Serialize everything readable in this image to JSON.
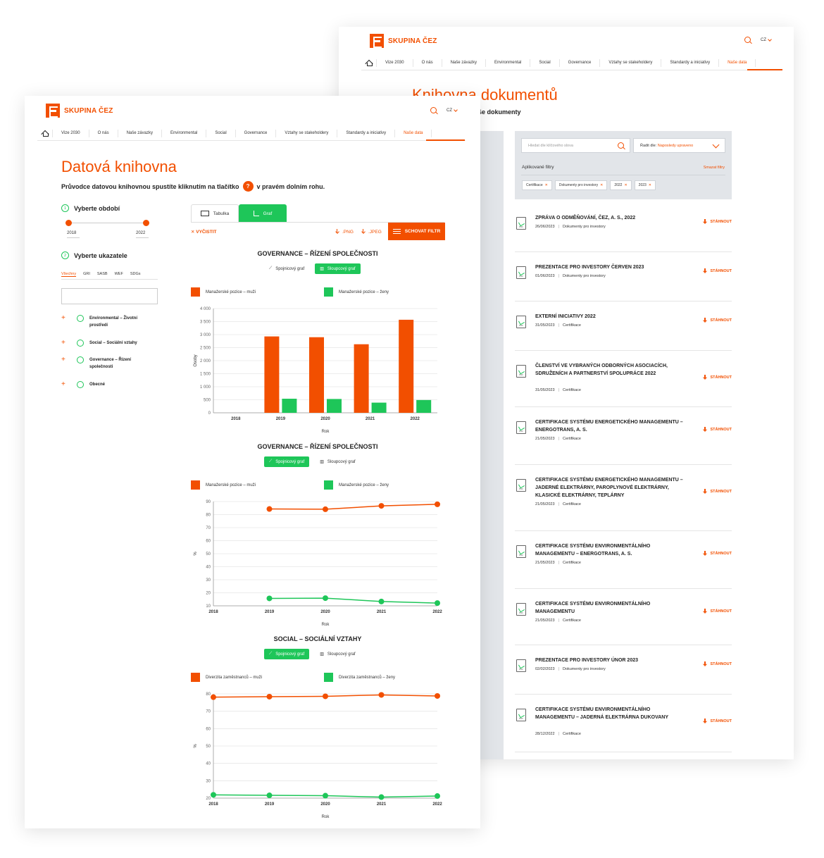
{
  "brand": {
    "name": "SKUPINA ČEZ",
    "accent": "#f24f00",
    "green": "#1ec659"
  },
  "header": {
    "lang": "CZ"
  },
  "nav": [
    "Vize 2030",
    "O nás",
    "Naše závazky",
    "Environmental",
    "Social",
    "Governance",
    "Vztahy se stakeholdery",
    "Standardy a iniciativy",
    "Naše data"
  ],
  "back": {
    "title": "Knihovna dokumentů",
    "subtitle": "še dokumenty",
    "search_placeholder": "Hledat dle klíčového slova",
    "sort_label": "Řadit dle:",
    "sort_value": "Naposledy upraveno",
    "applied_label": "Aplikované filtry",
    "clear_label": "Smazat filtry",
    "chips": [
      "Certifikace",
      "Dokumenty pro investory",
      "2022",
      "2023"
    ],
    "download_label": "STÁHNOUT",
    "docs": [
      {
        "title": "ZPRÁVA O ODMĚŇOVÁNÍ, ČEZ, A. S., 2022",
        "date": "26/06/2023",
        "type": "Dokumenty pro investory"
      },
      {
        "title": "PREZENTACE PRO INVESTORY ČERVEN 2023",
        "date": "01/06/2023",
        "type": "Dokumenty pro investory"
      },
      {
        "title": "EXTERNÍ INICIATIVY 2022",
        "date": "31/05/2023",
        "type": "Certifikace"
      },
      {
        "title": "ČLENSTVÍ VE VYBRANÝCH ODBORNÝCH ASOCIACÍCH, SDRUŽENÍCH A PARTNERSTVÍ SPOLUPRÁCE 2022",
        "date": "31/05/2023",
        "type": "Certifikace"
      },
      {
        "title": "CERTIFIKACE SYSTÉMU ENERGETICKÉHO MANAGEMENTU – ENERGOTRANS, A. S.",
        "date": "21/05/2023",
        "type": "Certifikace"
      },
      {
        "title": "CERTIFIKACE SYSTÉMU ENERGETICKÉHO MANAGEMENTU – JADERNÉ ELEKTRÁRNY, PAROPLYNOVÉ ELEKTRÁRNY, KLASICKÉ ELEKTRÁRNY, TEPLÁRNY",
        "date": "21/05/2023",
        "type": "Certifikace"
      },
      {
        "title": "CERTIFIKACE SYSTÉMU ENVIRONMENTÁLNÍHO MANAGEMENTU – ENERGOTRANS, A. S.",
        "date": "21/05/2023",
        "type": "Certifikace"
      },
      {
        "title": "CERTIFIKACE SYSTÉMU ENVIRONMENTÁLNÍHO MANAGEMENTU",
        "date": "21/05/2023",
        "type": "Certifikace"
      },
      {
        "title": "PREZENTACE PRO INVESTORY ÚNOR 2023",
        "date": "02/02/2023",
        "type": "Dokumenty pro investory"
      },
      {
        "title": "CERTIFIKACE SYSTÉMU ENVIRONMENTÁLNÍHO MANAGEMENTU – JADERNÁ ELEKTRÁRNA DUKOVANY",
        "date": "28/12/2022",
        "type": "Certifikace"
      }
    ]
  },
  "front": {
    "title": "Datová knihovna",
    "subtitle_pre": "Průvodce datovou knihovnou spustíte kliknutím na tlačítko",
    "subtitle_q": "?",
    "subtitle_post": "v pravém dolním rohu.",
    "step1_num": "1",
    "step1": "Vyberte období",
    "year_from": "2018",
    "year_to": "2022",
    "step2_num": "2",
    "step2": "Vyberte ukazatele",
    "filter_tabs": [
      "Všechny",
      "GRI",
      "SASB",
      "WEF",
      "SDGs"
    ],
    "categories": [
      {
        "line1": "Environmental – Životní",
        "line2": "prostředí"
      },
      {
        "line1": "Social – Sociální vztahy",
        "line2": ""
      },
      {
        "line1": "Governance – Řízení",
        "line2": "společnosti"
      },
      {
        "line1": "Obecné",
        "line2": ""
      }
    ],
    "view_tabs": [
      "Tabulka",
      "Graf"
    ],
    "clear": "VYČISTIT",
    "png": ".PNG",
    "jpeg": ".JPEG",
    "hide_filter": "SCHOVAT FILTR",
    "toggle_line": "Spojnicový graf",
    "toggle_bar": "Sloupcový graf"
  },
  "chart_data": [
    {
      "type": "bar",
      "title": "GOVERNANCE – ŘÍZENÍ SPOLEČNOSTI",
      "categories": [
        "2018",
        "2019",
        "2020",
        "2021",
        "2022"
      ],
      "series": [
        {
          "name": "Manažerské pozice – muži",
          "color": "#f24f00",
          "values": [
            0,
            2930,
            2900,
            2630,
            3570
          ]
        },
        {
          "name": "Manažerské pozice – ženy",
          "color": "#1ec659",
          "values": [
            0,
            540,
            530,
            390,
            490
          ]
        }
      ],
      "xlabel": "Rok",
      "ylabel": "Osoby",
      "ylim": [
        0,
        4000
      ],
      "yticks": [
        "0",
        "500",
        "1 000",
        "1 500",
        "2 000",
        "2 500",
        "3 000",
        "3 500",
        "4 000"
      ]
    },
    {
      "type": "line",
      "title": "GOVERNANCE – ŘÍZENÍ SPOLEČNOSTI",
      "categories": [
        "2018",
        "2019",
        "2020",
        "2021",
        "2022"
      ],
      "series": [
        {
          "name": "Manažerské pozice – muži",
          "color": "#f24f00",
          "values": [
            null,
            84.3,
            84.1,
            86.7,
            87.9
          ]
        },
        {
          "name": "Manažerské pozice – ženy",
          "color": "#1ec659",
          "values": [
            null,
            15.7,
            15.9,
            13.3,
            12.1
          ]
        }
      ],
      "xlabel": "Rok",
      "ylabel": "%",
      "ylim": [
        10,
        90
      ],
      "yticks": [
        "10",
        "20",
        "30",
        "40",
        "50",
        "60",
        "70",
        "80",
        "90"
      ]
    },
    {
      "type": "line",
      "title": "SOCIAL – SOCIÁLNÍ VZTAHY",
      "categories": [
        "2018",
        "2019",
        "2020",
        "2021",
        "2022"
      ],
      "series": [
        {
          "name": "Diverzita zaměstnanců – muži",
          "color": "#f24f00",
          "values": [
            78.1,
            78.4,
            78.6,
            79.4,
            78.8
          ]
        },
        {
          "name": "Diverzita zaměstnanců – ženy",
          "color": "#1ec659",
          "values": [
            21.9,
            21.6,
            21.4,
            20.6,
            21.2
          ]
        }
      ],
      "xlabel": "Rok",
      "ylabel": "%",
      "ylim": [
        20,
        80
      ],
      "yticks": [
        "20",
        "30",
        "40",
        "50",
        "60",
        "70",
        "80"
      ]
    }
  ]
}
